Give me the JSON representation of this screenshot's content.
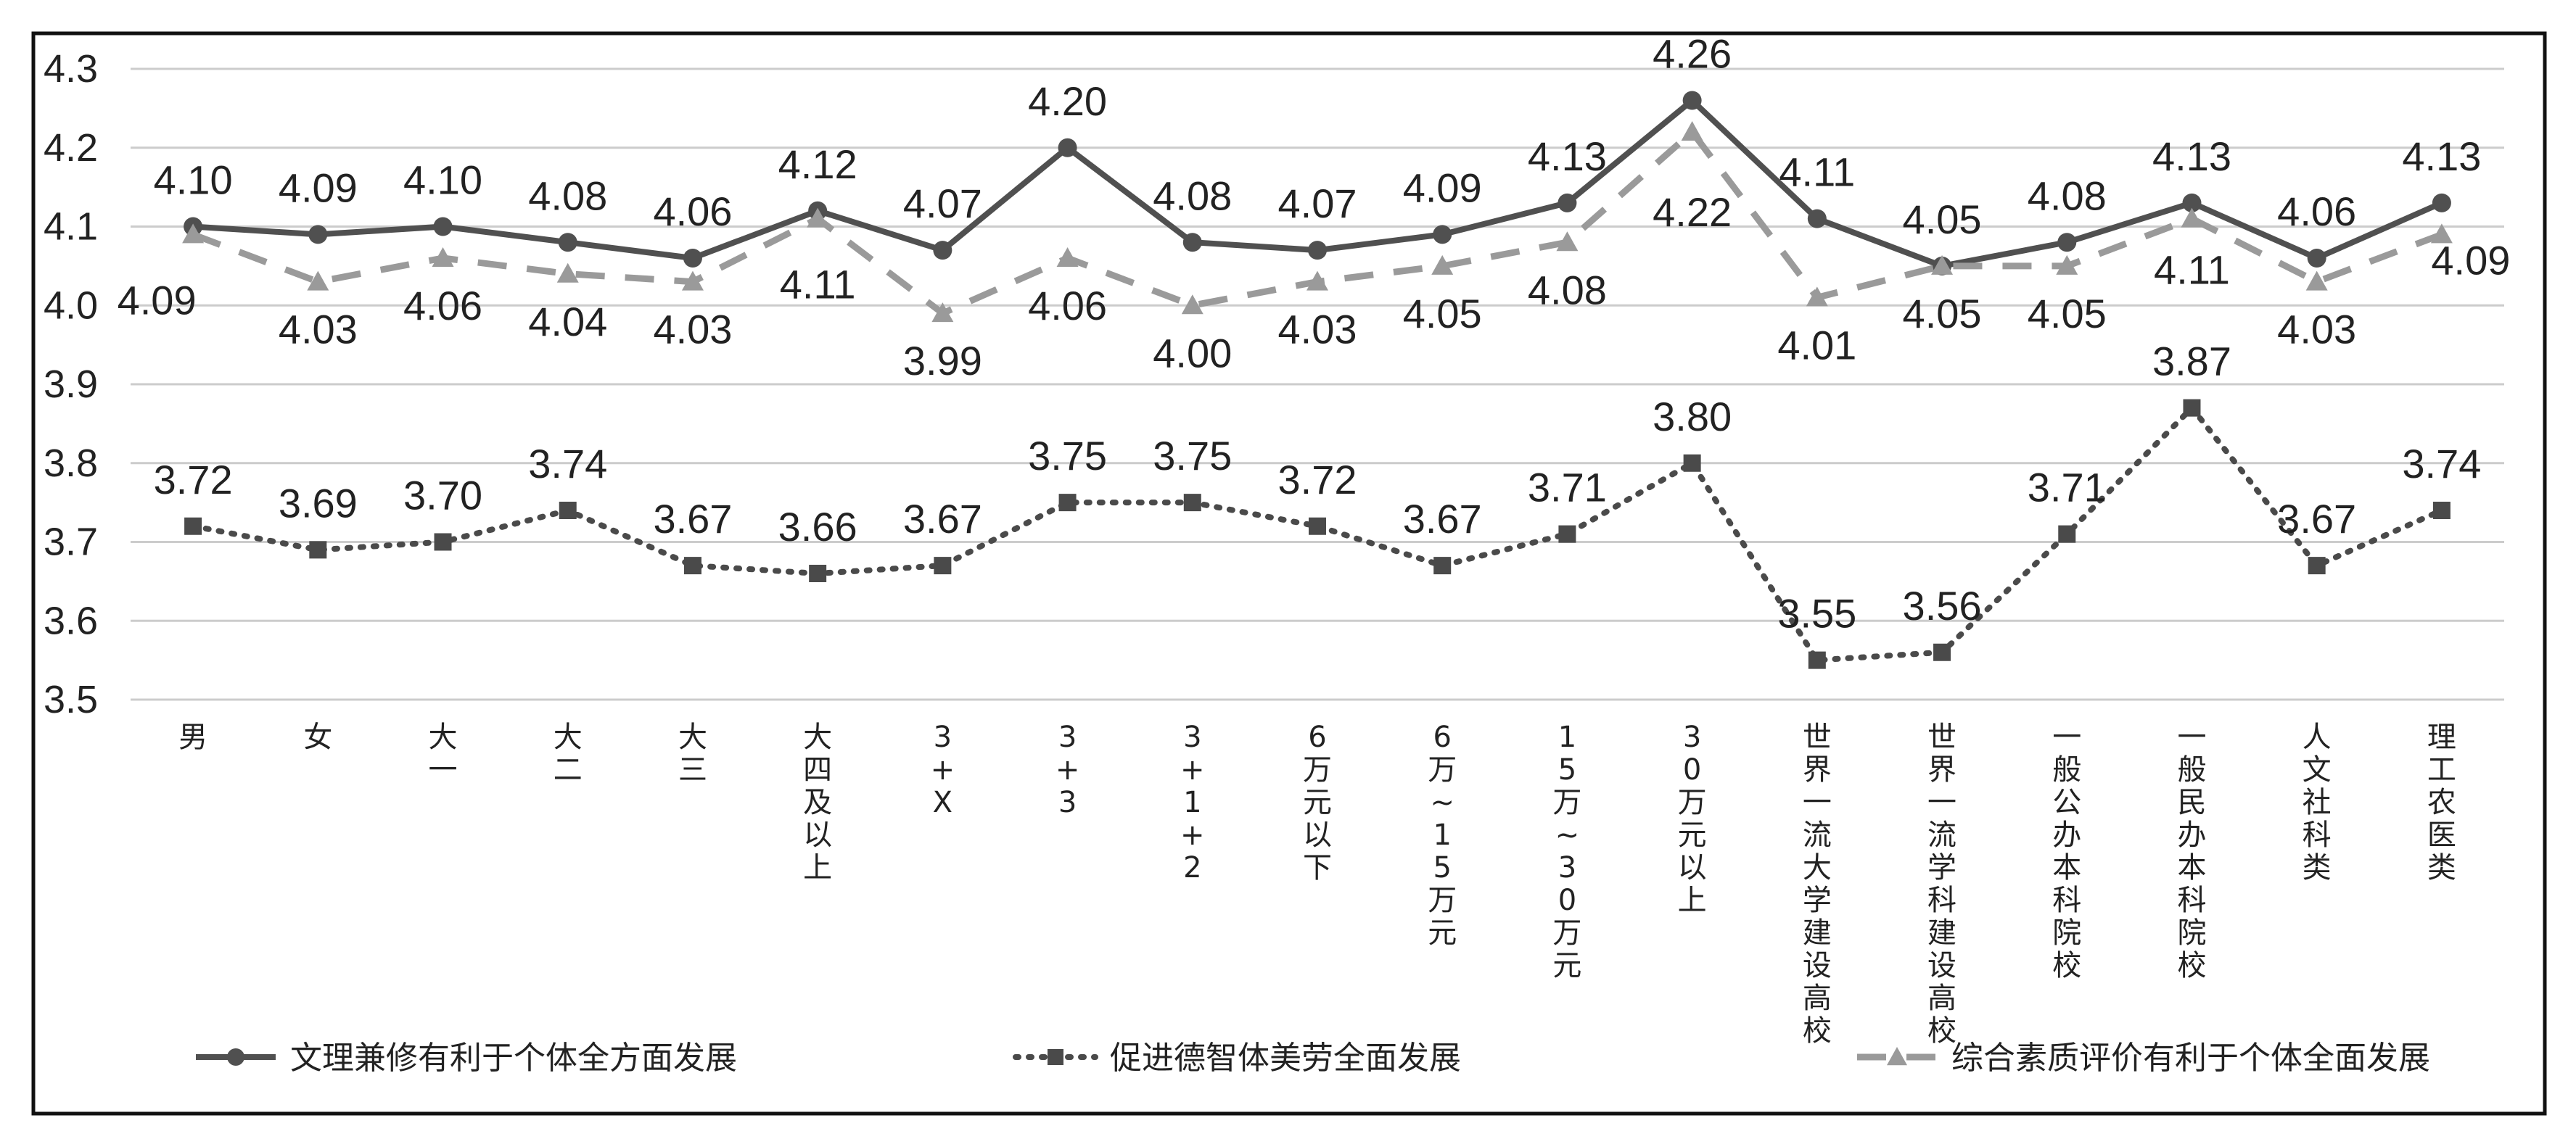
{
  "chart_data": {
    "type": "line",
    "categories": [
      "男",
      "女",
      "大一",
      "大二",
      "大三",
      "大四及以上",
      "3+X",
      "3+3",
      "3+1+2",
      "6万元以下",
      "6万~15万元",
      "15万~30万元",
      "30万元以上",
      "世界一流大学建设高校",
      "世界一流学科建设高校",
      "一般公办本科院校",
      "一般民办本科院校",
      "人文社科类",
      "理工农医类"
    ],
    "series": [
      {
        "name": "文理兼修有利于个体全方面发展",
        "values": [
          4.1,
          4.09,
          4.1,
          4.08,
          4.06,
          4.12,
          4.07,
          4.2,
          4.08,
          4.07,
          4.09,
          4.13,
          4.26,
          4.11,
          4.05,
          4.08,
          4.13,
          4.06,
          4.13
        ],
        "value_labels": [
          "4.10",
          "4.09",
          "4.10",
          "4.08",
          "4.06",
          "4.12",
          "4.07",
          "4.20",
          "4.08",
          "4.07",
          "4.09",
          "4.13",
          "4.26",
          "4.11",
          "4.05",
          "4.08",
          "4.13",
          "4.06",
          "4.13"
        ],
        "line_style": "solid",
        "marker": "circle",
        "color": "#505050"
      },
      {
        "name": "促进德智体美劳全面发展",
        "values": [
          3.72,
          3.69,
          3.7,
          3.74,
          3.67,
          3.66,
          3.67,
          3.75,
          3.75,
          3.72,
          3.67,
          3.71,
          3.8,
          3.55,
          3.56,
          3.71,
          3.87,
          3.67,
          3.74
        ],
        "value_labels": [
          "3.72",
          "3.69",
          "3.70",
          "3.74",
          "3.67",
          "3.66",
          "3.67",
          "3.75",
          "3.75",
          "3.72",
          "3.67",
          "3.71",
          "3.80",
          "3.55",
          "3.56",
          "3.71",
          "3.87",
          "3.67",
          "3.74"
        ],
        "line_style": "dotted",
        "marker": "square",
        "color": "#4a4a4a"
      },
      {
        "name": "综合素质评价有利于个体全面发展",
        "values": [
          4.09,
          4.03,
          4.06,
          4.04,
          4.03,
          4.11,
          3.99,
          4.06,
          4.0,
          4.03,
          4.05,
          4.08,
          4.22,
          4.01,
          4.05,
          4.05,
          4.11,
          4.03,
          4.09
        ],
        "value_labels": [
          "4.09",
          "4.03",
          "4.06",
          "4.04",
          "4.03",
          "4.11",
          "3.99",
          "4.06",
          "4.00",
          "4.03",
          "4.05",
          "4.08",
          "4.22",
          "4.01",
          "4.05",
          "4.05",
          "4.11",
          "4.03",
          "4.09"
        ],
        "line_style": "dashed",
        "marker": "triangle",
        "color": "#9a9a9a"
      }
    ],
    "y_ticks": [
      "4.3",
      "4.2",
      "4.1",
      "4.0",
      "3.9",
      "3.8",
      "3.7",
      "3.6",
      "3.5"
    ],
    "ylim": [
      3.5,
      4.3
    ],
    "title": "",
    "xlabel": "",
    "ylabel": "",
    "grid": true,
    "legend_position": "bottom",
    "colors": {
      "gridline": "#cccccc",
      "frame": "#111111",
      "text": "#222222"
    }
  }
}
